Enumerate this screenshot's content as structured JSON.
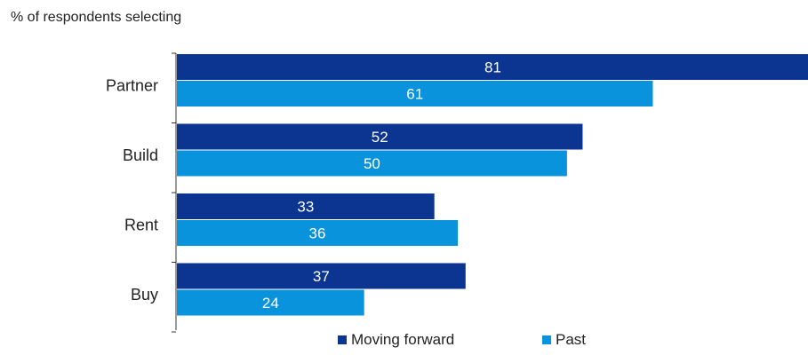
{
  "chart_data": {
    "type": "bar",
    "orientation": "horizontal",
    "subtitle": "% of respondents selecting",
    "categories": [
      "Partner",
      "Build",
      "Rent",
      "Buy"
    ],
    "series": [
      {
        "name": "Moving forward",
        "color": "#0b3590",
        "values": [
          81,
          52,
          33,
          37
        ]
      },
      {
        "name": "Past",
        "color": "#0a93dd",
        "values": [
          61,
          50,
          36,
          24
        ]
      }
    ],
    "xlim": [
      0,
      81
    ],
    "legend_position": "bottom"
  }
}
